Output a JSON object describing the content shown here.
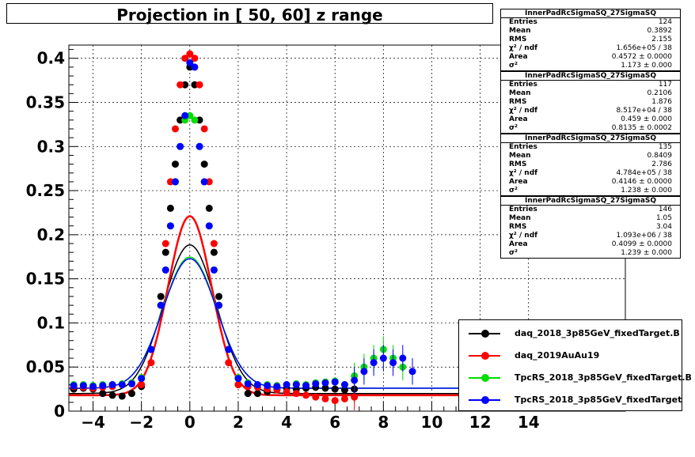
{
  "title": "Projection in [  50,  60] z range",
  "chart_data": {
    "type": "scatter",
    "title": "Projection in [  50,  60] z range",
    "xlabel": "",
    "ylabel": "",
    "xlim": [
      -5,
      18
    ],
    "ylim": [
      0,
      0.415
    ],
    "grid": true,
    "x_ticks": [
      "−4",
      "−2",
      "0",
      "2",
      "4",
      "6",
      "8",
      "10",
      "12",
      "14"
    ],
    "x_tick_values": [
      -4,
      -2,
      0,
      2,
      4,
      6,
      8,
      10,
      12,
      14
    ],
    "y_ticks": [
      "0",
      "0.05",
      "0.1",
      "0.15",
      "0.2",
      "0.25",
      "0.3",
      "0.35",
      "0.4"
    ],
    "y_tick_values": [
      0,
      0.05,
      0.1,
      0.15,
      0.2,
      0.25,
      0.3,
      0.35,
      0.4
    ],
    "legend_position": "bottom-right",
    "series": [
      {
        "name": "daq_2018_3p85GeV_fixedTarget.B",
        "color": "#000000",
        "fit": {
          "area": 0.4572,
          "sigma": 1.173
        },
        "baseline": 0.02,
        "x": [
          -4.8,
          -4.4,
          -4.0,
          -3.6,
          -3.2,
          -2.8,
          -2.4,
          -2.0,
          -1.6,
          -1.2,
          -1.0,
          -0.8,
          -0.6,
          -0.4,
          -0.2,
          0.0,
          0.2,
          0.4,
          0.6,
          0.8,
          1.0,
          1.2,
          1.6,
          2.0,
          2.4,
          2.8,
          3.2,
          3.6,
          4.0,
          4.4,
          4.8,
          5.2,
          5.6,
          6.0,
          6.4,
          6.8
        ],
        "y": [
          0.025,
          0.026,
          0.025,
          0.02,
          0.018,
          0.017,
          0.02,
          0.028,
          0.07,
          0.13,
          0.18,
          0.23,
          0.28,
          0.33,
          0.37,
          0.39,
          0.37,
          0.33,
          0.28,
          0.23,
          0.18,
          0.13,
          0.07,
          0.03,
          0.02,
          0.02,
          0.022,
          0.025,
          0.026,
          0.025,
          0.026,
          0.027,
          0.026,
          0.025,
          0.024,
          0.025
        ]
      },
      {
        "name": "daq_2019AuAu19",
        "color": "#ff0000",
        "fit": {
          "area": 0.459,
          "sigma": 0.8135
        },
        "baseline": 0.018,
        "x": [
          -4.8,
          -4.4,
          -4.0,
          -3.6,
          -3.2,
          -2.8,
          -2.4,
          -2.0,
          -1.6,
          -1.2,
          -1.0,
          -0.8,
          -0.6,
          -0.4,
          -0.2,
          0.0,
          0.2,
          0.4,
          0.6,
          0.8,
          1.0,
          1.2,
          1.6,
          2.0,
          2.4,
          2.8,
          3.2,
          3.6,
          4.0,
          4.4,
          4.8,
          5.2,
          5.6,
          6.0,
          6.4,
          6.8
        ],
        "y": [
          0.028,
          0.027,
          0.026,
          0.027,
          0.028,
          0.03,
          0.032,
          0.03,
          0.055,
          0.12,
          0.19,
          0.26,
          0.32,
          0.37,
          0.4,
          0.405,
          0.4,
          0.37,
          0.32,
          0.26,
          0.19,
          0.12,
          0.055,
          0.03,
          0.028,
          0.027,
          0.025,
          0.024,
          0.022,
          0.02,
          0.018,
          0.016,
          0.014,
          0.012,
          0.014,
          0.016
        ]
      },
      {
        "name": "TpcRS_2018_3p85GeV_fixedTarget.B",
        "color": "#00dd00",
        "fit": {
          "area": 0.4146,
          "sigma": 1.238
        },
        "baseline": 0.026,
        "x": [
          -4.8,
          -4.4,
          -4.0,
          -3.6,
          -3.2,
          -2.8,
          -2.4,
          -2.0,
          -1.6,
          -1.2,
          -1.0,
          -0.8,
          -0.6,
          -0.4,
          -0.2,
          0.0,
          0.2,
          0.4,
          0.6,
          0.8,
          1.0,
          1.2,
          1.6,
          2.0,
          2.4,
          2.8,
          3.2,
          3.6,
          4.0,
          4.4,
          4.8,
          5.2,
          5.6,
          6.0,
          6.4,
          6.8,
          7.2,
          7.6,
          8.0,
          8.4,
          8.8
        ],
        "y": [
          0.03,
          0.03,
          0.029,
          0.03,
          0.03,
          0.031,
          0.032,
          0.038,
          0.07,
          0.12,
          0.16,
          0.21,
          0.26,
          0.3,
          0.33,
          0.335,
          0.33,
          0.3,
          0.26,
          0.21,
          0.16,
          0.12,
          0.07,
          0.038,
          0.032,
          0.03,
          0.03,
          0.029,
          0.03,
          0.031,
          0.03,
          0.032,
          0.033,
          0.034,
          0.03,
          0.04,
          0.05,
          0.06,
          0.07,
          0.06,
          0.05
        ]
      },
      {
        "name": "TpcRS_2018_3p85GeV_fixedTarget",
        "color": "#0000ff",
        "fit": {
          "area": 0.4099,
          "sigma": 1.239
        },
        "baseline": 0.026,
        "x": [
          -4.8,
          -4.4,
          -4.0,
          -3.6,
          -3.2,
          -2.8,
          -2.4,
          -2.0,
          -1.6,
          -1.2,
          -1.0,
          -0.8,
          -0.6,
          -0.4,
          -0.2,
          0.0,
          0.2,
          0.4,
          0.6,
          0.8,
          1.0,
          1.2,
          1.6,
          2.0,
          2.4,
          2.8,
          3.2,
          3.6,
          4.0,
          4.4,
          4.8,
          5.2,
          5.6,
          6.0,
          6.4,
          6.8,
          7.2,
          7.6,
          8.0,
          8.4,
          8.8,
          9.2
        ],
        "y": [
          0.029,
          0.029,
          0.028,
          0.029,
          0.03,
          0.03,
          0.031,
          0.037,
          0.07,
          0.12,
          0.16,
          0.21,
          0.26,
          0.3,
          0.335,
          0.395,
          0.39,
          0.3,
          0.26,
          0.21,
          0.16,
          0.12,
          0.07,
          0.037,
          0.031,
          0.03,
          0.029,
          0.028,
          0.03,
          0.03,
          0.029,
          0.031,
          0.032,
          0.033,
          0.03,
          0.035,
          0.045,
          0.055,
          0.06,
          0.055,
          0.06,
          0.045
        ]
      }
    ]
  },
  "stats": [
    {
      "title": "InnerPadRcSigmaSQ_27SigmaSQ",
      "rows": [
        {
          "key": "Entries",
          "val": "124"
        },
        {
          "key": "Mean",
          "val": "0.3892"
        },
        {
          "key": "RMS",
          "val": "2.155"
        },
        {
          "key": "χ² / ndf",
          "val": "1.656e+05 / 38"
        },
        {
          "key": "Area",
          "val": "0.4572 ± 0.0000"
        },
        {
          "key": "σ²",
          "val": "1.173 ± 0.000"
        }
      ]
    },
    {
      "title": "InnerPadRcSigmaSQ_27SigmaSQ",
      "rows": [
        {
          "key": "Entries",
          "val": "117"
        },
        {
          "key": "Mean",
          "val": "0.2106"
        },
        {
          "key": "RMS",
          "val": "1.876"
        },
        {
          "key": "χ² / ndf",
          "val": "8.517e+04 / 38"
        },
        {
          "key": "Area",
          "val": "0.459 ± 0.000"
        },
        {
          "key": "σ²",
          "val": "0.8135 ± 0.0002"
        }
      ]
    },
    {
      "title": "InnerPadRcSigmaSQ_27SigmaSQ",
      "rows": [
        {
          "key": "Entries",
          "val": "135"
        },
        {
          "key": "Mean",
          "val": "0.8409"
        },
        {
          "key": "RMS",
          "val": "2.786"
        },
        {
          "key": "χ² / ndf",
          "val": "4.784e+05 / 38"
        },
        {
          "key": "Area",
          "val": "0.4146 ± 0.0000"
        },
        {
          "key": "σ²",
          "val": "1.238 ± 0.000"
        }
      ]
    },
    {
      "title": "InnerPadRcSigmaSQ_27SigmaSQ",
      "rows": [
        {
          "key": "Entries",
          "val": "146"
        },
        {
          "key": "Mean",
          "val": "1.05"
        },
        {
          "key": "RMS",
          "val": "3.04"
        },
        {
          "key": "χ² / ndf",
          "val": "1.093e+06 / 38"
        },
        {
          "key": "Area",
          "val": "0.4099 ± 0.0000"
        },
        {
          "key": "σ²",
          "val": "1.239 ± 0.000"
        }
      ]
    }
  ],
  "legend": [
    {
      "label": "daq_2018_3p85GeV_fixedTarget.B",
      "color": "#000000"
    },
    {
      "label": "daq_2019AuAu19",
      "color": "#ff0000"
    },
    {
      "label": "TpcRS_2018_3p85GeV_fixedTarget.B",
      "color": "#00dd00"
    },
    {
      "label": "TpcRS_2018_3p85GeV_fixedTarget",
      "color": "#0000ff"
    }
  ]
}
